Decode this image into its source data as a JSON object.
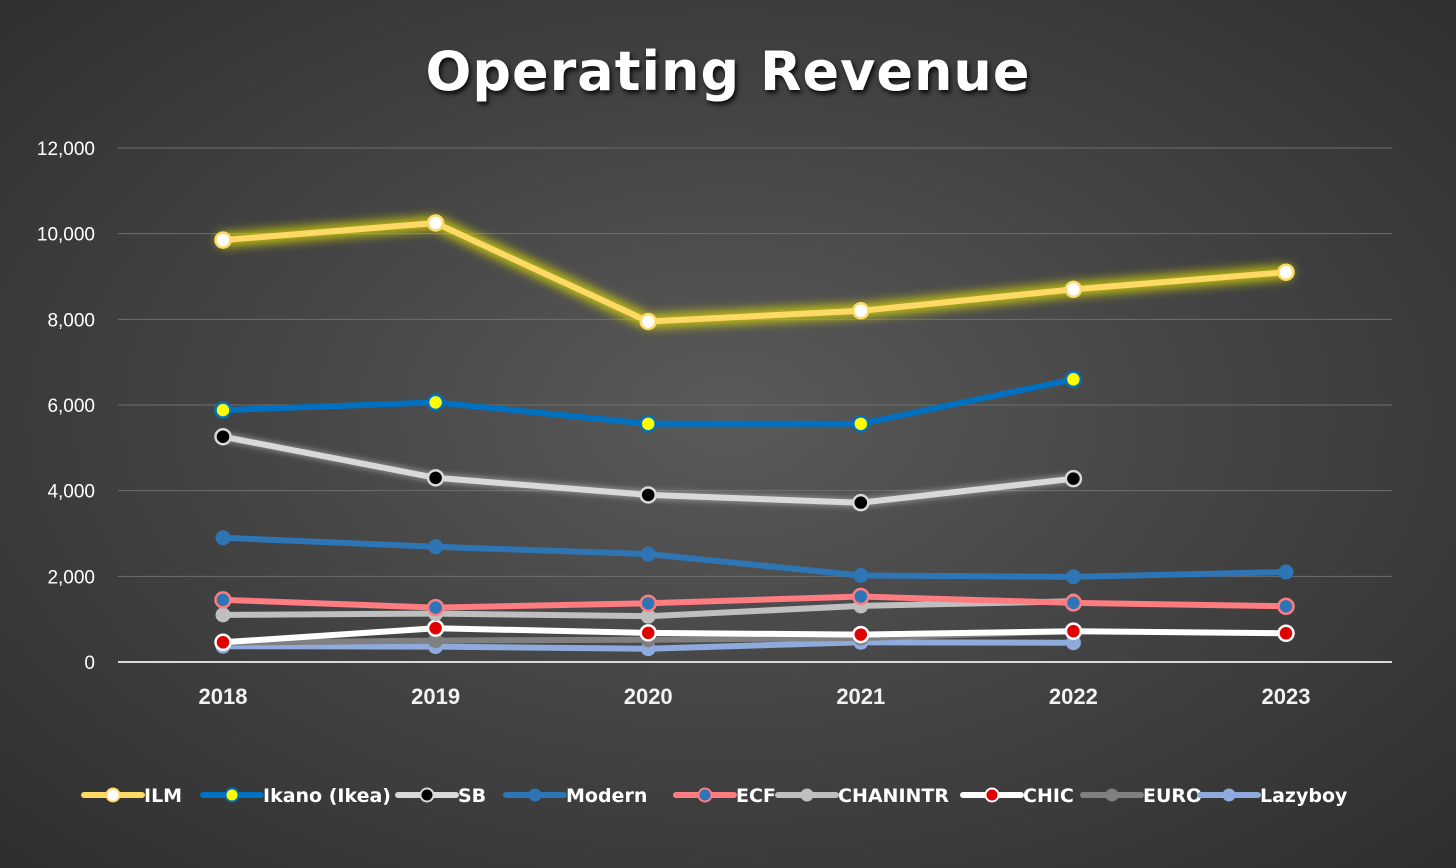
{
  "chart_data": {
    "type": "line",
    "title": "Operating Revenue",
    "xlabel": "",
    "ylabel": "",
    "categories": [
      "2018",
      "2019",
      "2020",
      "2021",
      "2022",
      "2023"
    ],
    "y_ticks": [
      "0",
      "2,000",
      "4,000",
      "6,000",
      "8,000",
      "10,000",
      "12,000"
    ],
    "ylim": [
      0,
      12000
    ],
    "grid": true,
    "legend_position": "bottom",
    "series": [
      {
        "name": "ILM",
        "values": [
          9850,
          10250,
          7950,
          8200,
          8700,
          9100
        ],
        "line_color": "#ffd966",
        "marker_fill": "#ffffff",
        "glow": "#e6e600"
      },
      {
        "name": "Ikano (Ikea)",
        "values": [
          5880,
          6060,
          5560,
          5560,
          6600,
          null
        ],
        "line_color": "#0070c0",
        "marker_fill": "#ffff00"
      },
      {
        "name": "SB",
        "values": [
          5260,
          4300,
          3900,
          3720,
          4280,
          null
        ],
        "line_color": "#d9d9d9",
        "marker_fill": "#000000"
      },
      {
        "name": "Modern",
        "values": [
          2900,
          2690,
          2520,
          2020,
          1990,
          2100
        ],
        "line_color": "#2e75b6",
        "marker_fill": "#2e75b6"
      },
      {
        "name": "ECF",
        "values": [
          1450,
          1270,
          1370,
          1530,
          1380,
          1300
        ],
        "line_color": "#ff7c80",
        "marker_fill": "#2e75b6"
      },
      {
        "name": "CHANINTR",
        "values": [
          1100,
          1130,
          1070,
          1310,
          1420,
          null
        ],
        "line_color": "#bfbfbf",
        "marker_fill": "#bfbfbf"
      },
      {
        "name": "CHIC",
        "values": [
          460,
          790,
          680,
          640,
          720,
          670
        ],
        "line_color": "#ffffff",
        "marker_fill": "#e00000"
      },
      {
        "name": "EURO",
        "values": [
          450,
          500,
          520,
          560,
          720,
          null
        ],
        "line_color": "#808080",
        "marker_fill": "#808080"
      },
      {
        "name": "Lazyboy",
        "values": [
          370,
          360,
          310,
          460,
          450,
          null
        ],
        "line_color": "#8faadc",
        "marker_fill": "#8faadc"
      }
    ]
  }
}
